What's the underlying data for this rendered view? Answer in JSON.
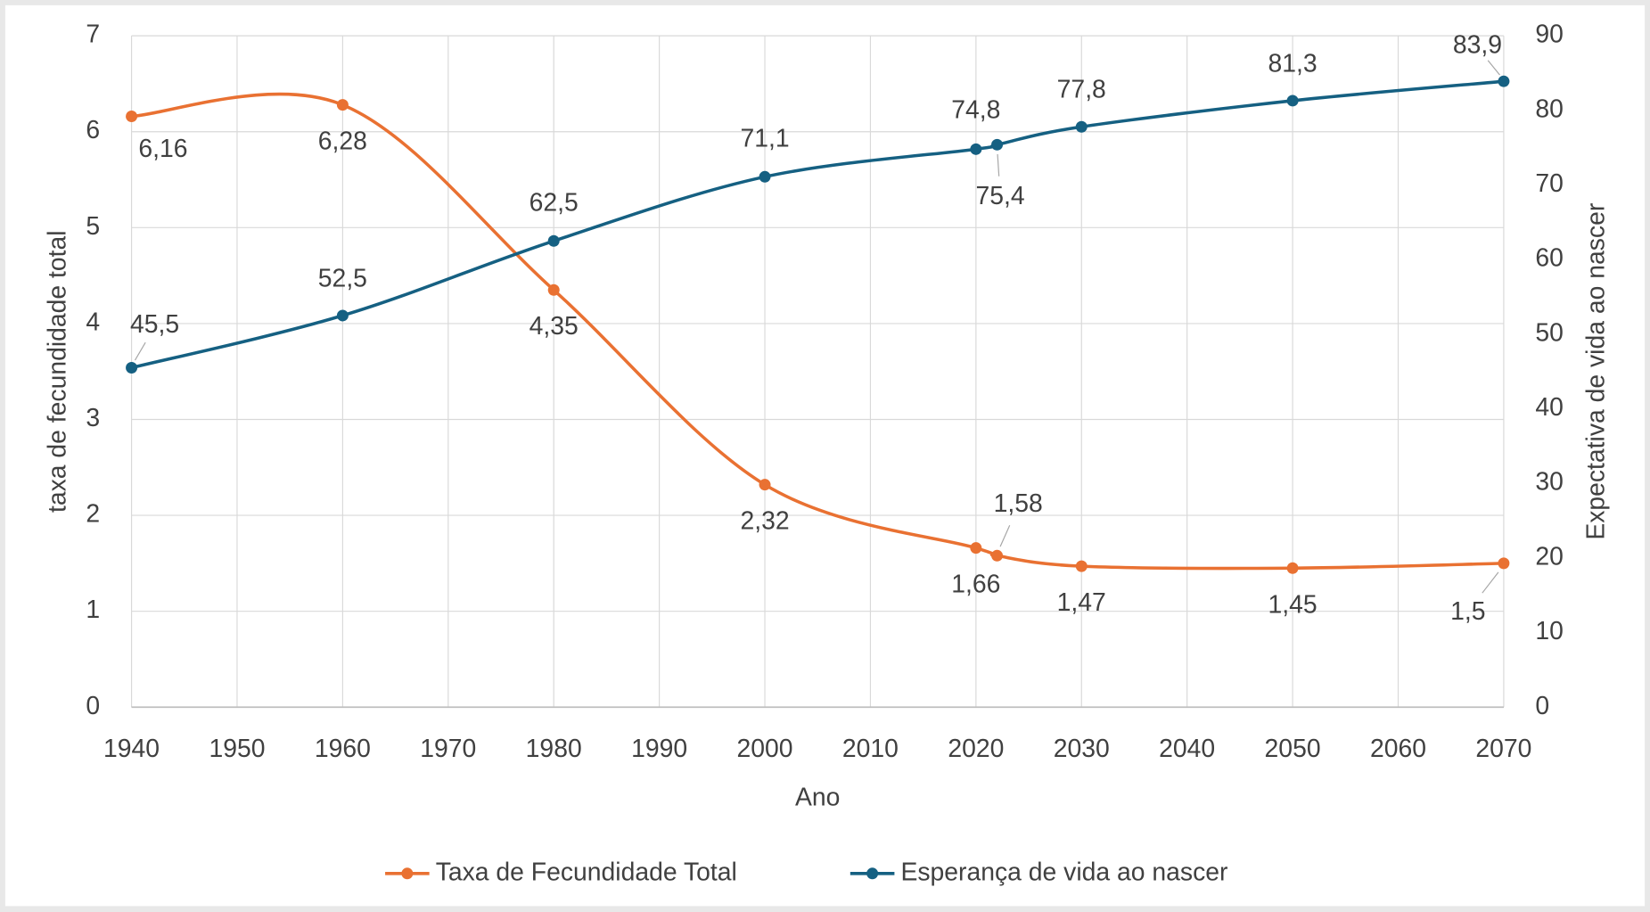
{
  "chart_data": {
    "type": "line",
    "x": [
      1940,
      1960,
      1980,
      2000,
      2020,
      2022,
      2030,
      2050,
      2070
    ],
    "xlabel": "Ano",
    "ylabel": "taxa de fecundidade total",
    "y2label": "Expectativa de vida ao nascer",
    "xlim": [
      1940,
      2070
    ],
    "xticks": [
      1940,
      1950,
      1960,
      1970,
      1980,
      1990,
      2000,
      2010,
      2020,
      2030,
      2040,
      2050,
      2060,
      2070
    ],
    "ylim": [
      0,
      7
    ],
    "yticks": [
      0,
      1,
      2,
      3,
      4,
      5,
      6,
      7
    ],
    "y2lim": [
      0,
      90
    ],
    "y2ticks": [
      0,
      10,
      20,
      30,
      40,
      50,
      60,
      70,
      80,
      90
    ],
    "grid": true,
    "legend": "bottom",
    "series": [
      {
        "name": "Taxa de Fecundidade Total",
        "color": "#e97132",
        "values": [
          6.16,
          6.28,
          4.35,
          2.32,
          1.66,
          1.58,
          1.47,
          1.45,
          1.5
        ],
        "value_labels": [
          "6,16",
          "6,28",
          "4,35",
          "2,32",
          "1,66",
          "1,58",
          "1,47",
          "1,45",
          "1,5"
        ]
      },
      {
        "name": "Esperança de vida ao nascer",
        "color": "#156082",
        "axis": "y2",
        "values": [
          45.5,
          52.5,
          62.5,
          71.1,
          74.8,
          75.4,
          77.8,
          81.3,
          83.9
        ],
        "value_labels": [
          "45,5",
          "52,5",
          "62,5",
          "71,1",
          "74,8",
          "75,4",
          "77,8",
          "81,3",
          "83,9"
        ]
      }
    ]
  }
}
